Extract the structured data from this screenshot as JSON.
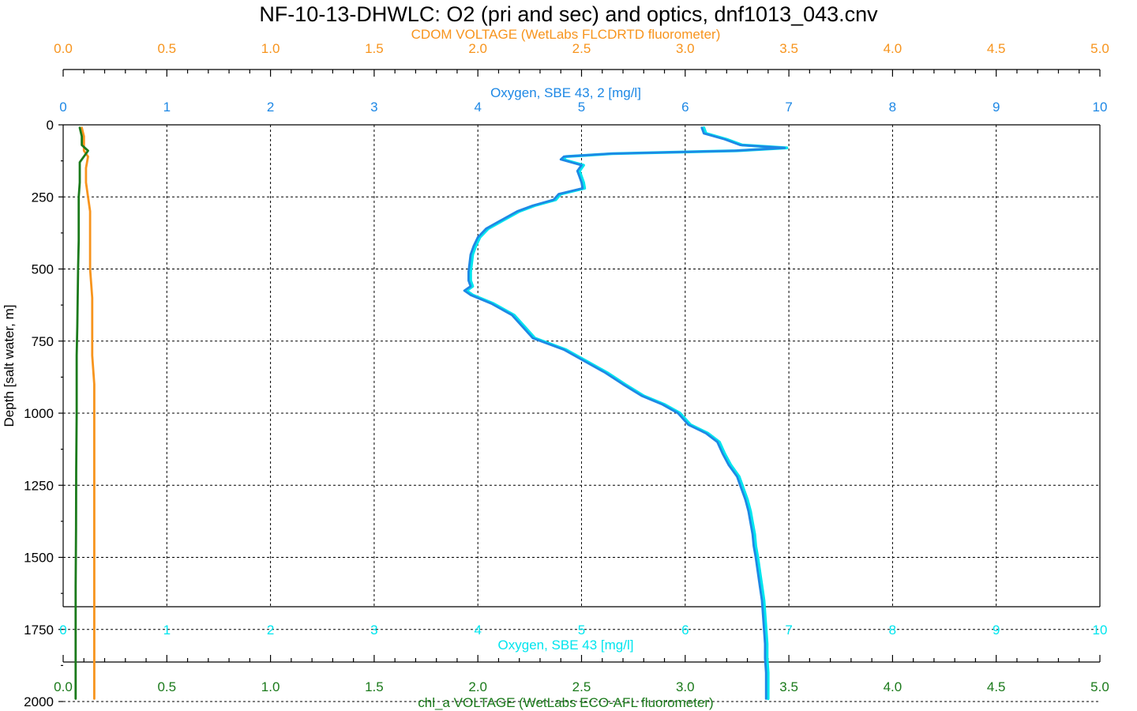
{
  "chart_data": {
    "type": "line",
    "title": "NF-10-13-DHWLC: O2 (pri and sec) and optics, dnf1013_043.cnv",
    "y_axis": {
      "label": "Depth [salt water, m]",
      "range": [
        0,
        2050
      ],
      "ticks": [
        "0",
        "250",
        "500",
        "750",
        "1000",
        "1250",
        "1500",
        "1750",
        "2000"
      ],
      "inverted": true,
      "grid": true
    },
    "x_axes": [
      {
        "id": "cdom",
        "label": "CDOM VOLTAGE (WetLabs FLCDRTD fluorometer)",
        "position": "top-outer",
        "color": "#F7941D",
        "range": [
          0,
          5
        ],
        "ticks": [
          "0.0",
          "0.5",
          "1.0",
          "1.5",
          "2.0",
          "2.5",
          "3.0",
          "3.5",
          "4.0",
          "4.5",
          "5.0"
        ]
      },
      {
        "id": "oxy2",
        "label": "Oxygen, SBE 43, 2 [mg/l]",
        "position": "top-inner",
        "color": "#1E88E5",
        "range": [
          0,
          10
        ],
        "ticks": [
          "0",
          "1",
          "2",
          "3",
          "4",
          "5",
          "6",
          "7",
          "8",
          "9",
          "10"
        ]
      },
      {
        "id": "oxy1",
        "label": "Oxygen, SBE 43 [mg/l]",
        "position": "bottom-inner",
        "color": "#00E5EE",
        "range": [
          0,
          10
        ],
        "ticks": [
          "0",
          "1",
          "2",
          "3",
          "4",
          "5",
          "6",
          "7",
          "8",
          "9",
          "10"
        ]
      },
      {
        "id": "chl",
        "label": "chl_a VOLTAGE (WetLabs ECO-AFL fluorometer)",
        "position": "bottom-outer",
        "color": "#1B7A1B",
        "range": [
          0,
          5
        ],
        "ticks": [
          "0.0",
          "0.5",
          "1.0",
          "1.5",
          "2.0",
          "2.5",
          "3.0",
          "3.5",
          "4.0",
          "4.5",
          "5.0"
        ]
      }
    ],
    "series": [
      {
        "name": "Oxygen, SBE 43 [mg/l]",
        "axis": "oxy1",
        "color": "#00E5EE",
        "depth": [
          10,
          30,
          50,
          70,
          80,
          90,
          100,
          110,
          120,
          140,
          160,
          180,
          200,
          220,
          240,
          260,
          280,
          300,
          330,
          360,
          390,
          420,
          450,
          480,
          510,
          540,
          560,
          575,
          590,
          620,
          660,
          700,
          740,
          780,
          820,
          860,
          900,
          940,
          970,
          1000,
          1040,
          1070,
          1100,
          1140,
          1180,
          1220,
          1260,
          1300,
          1340,
          1380,
          1420,
          1460,
          1500,
          1550,
          1600,
          1650,
          1700,
          1750,
          1800,
          1850,
          1900,
          1950,
          1990
        ],
        "values": [
          6.18,
          6.2,
          6.4,
          6.55,
          6.98,
          6.5,
          5.3,
          4.85,
          4.82,
          5.02,
          4.98,
          5.0,
          5.02,
          5.03,
          4.8,
          4.75,
          4.55,
          4.4,
          4.25,
          4.1,
          4.02,
          3.98,
          3.95,
          3.94,
          3.93,
          3.93,
          3.95,
          3.89,
          3.95,
          4.15,
          4.35,
          4.45,
          4.55,
          4.85,
          5.05,
          5.25,
          5.42,
          5.6,
          5.8,
          5.95,
          6.05,
          6.22,
          6.33,
          6.38,
          6.44,
          6.52,
          6.56,
          6.6,
          6.63,
          6.65,
          6.67,
          6.68,
          6.7,
          6.72,
          6.74,
          6.76,
          6.77,
          6.78,
          6.79,
          6.79,
          6.8,
          6.8,
          6.8
        ]
      },
      {
        "name": "Oxygen, SBE 43, 2 [mg/l]",
        "axis": "oxy2",
        "color": "#1E88E5",
        "depth": [
          10,
          30,
          50,
          70,
          80,
          90,
          100,
          110,
          120,
          140,
          160,
          180,
          200,
          220,
          240,
          260,
          280,
          300,
          330,
          360,
          390,
          420,
          450,
          480,
          510,
          540,
          560,
          575,
          590,
          620,
          660,
          700,
          740,
          780,
          820,
          860,
          900,
          940,
          970,
          1000,
          1040,
          1070,
          1100,
          1140,
          1180,
          1220,
          1260,
          1300,
          1340,
          1380,
          1420,
          1460,
          1500,
          1550,
          1600,
          1650,
          1700,
          1750,
          1800,
          1850,
          1900,
          1950,
          1990
        ],
        "values": [
          6.16,
          6.18,
          6.38,
          6.53,
          6.96,
          6.48,
          5.28,
          4.83,
          4.8,
          5.0,
          4.96,
          4.98,
          5.0,
          5.01,
          4.78,
          4.73,
          4.53,
          4.38,
          4.23,
          4.08,
          4.0,
          3.96,
          3.93,
          3.92,
          3.91,
          3.91,
          3.93,
          3.87,
          3.93,
          4.13,
          4.33,
          4.43,
          4.53,
          4.83,
          5.03,
          5.23,
          5.4,
          5.58,
          5.78,
          5.93,
          6.03,
          6.2,
          6.31,
          6.36,
          6.42,
          6.5,
          6.54,
          6.58,
          6.61,
          6.63,
          6.65,
          6.66,
          6.68,
          6.7,
          6.72,
          6.74,
          6.75,
          6.76,
          6.77,
          6.77,
          6.78,
          6.78,
          6.78
        ]
      },
      {
        "name": "CDOM VOLTAGE (WetLabs FLCDRTD fluorometer)",
        "axis": "cdom",
        "color": "#F7941D",
        "depth": [
          10,
          40,
          70,
          90,
          110,
          150,
          200,
          250,
          300,
          400,
          500,
          600,
          700,
          800,
          900,
          1000,
          1200,
          1400,
          1600,
          1800,
          1990
        ],
        "values": [
          0.09,
          0.1,
          0.1,
          0.1,
          0.12,
          0.11,
          0.11,
          0.12,
          0.13,
          0.13,
          0.13,
          0.14,
          0.14,
          0.14,
          0.15,
          0.15,
          0.15,
          0.15,
          0.15,
          0.15,
          0.15
        ]
      },
      {
        "name": "chl_a VOLTAGE (WetLabs ECO-AFL fluorometer)",
        "axis": "chl",
        "color": "#1B7A1B",
        "depth": [
          10,
          40,
          70,
          90,
          100,
          130,
          150,
          200,
          250,
          300,
          400,
          500,
          600,
          700,
          800,
          900,
          1000,
          1200,
          1400,
          1600,
          1800,
          1990
        ],
        "values": [
          0.08,
          0.09,
          0.09,
          0.12,
          0.11,
          0.08,
          0.08,
          0.08,
          0.075,
          0.075,
          0.075,
          0.072,
          0.07,
          0.068,
          0.065,
          0.065,
          0.065,
          0.063,
          0.062,
          0.06,
          0.06,
          0.06
        ]
      }
    ]
  }
}
